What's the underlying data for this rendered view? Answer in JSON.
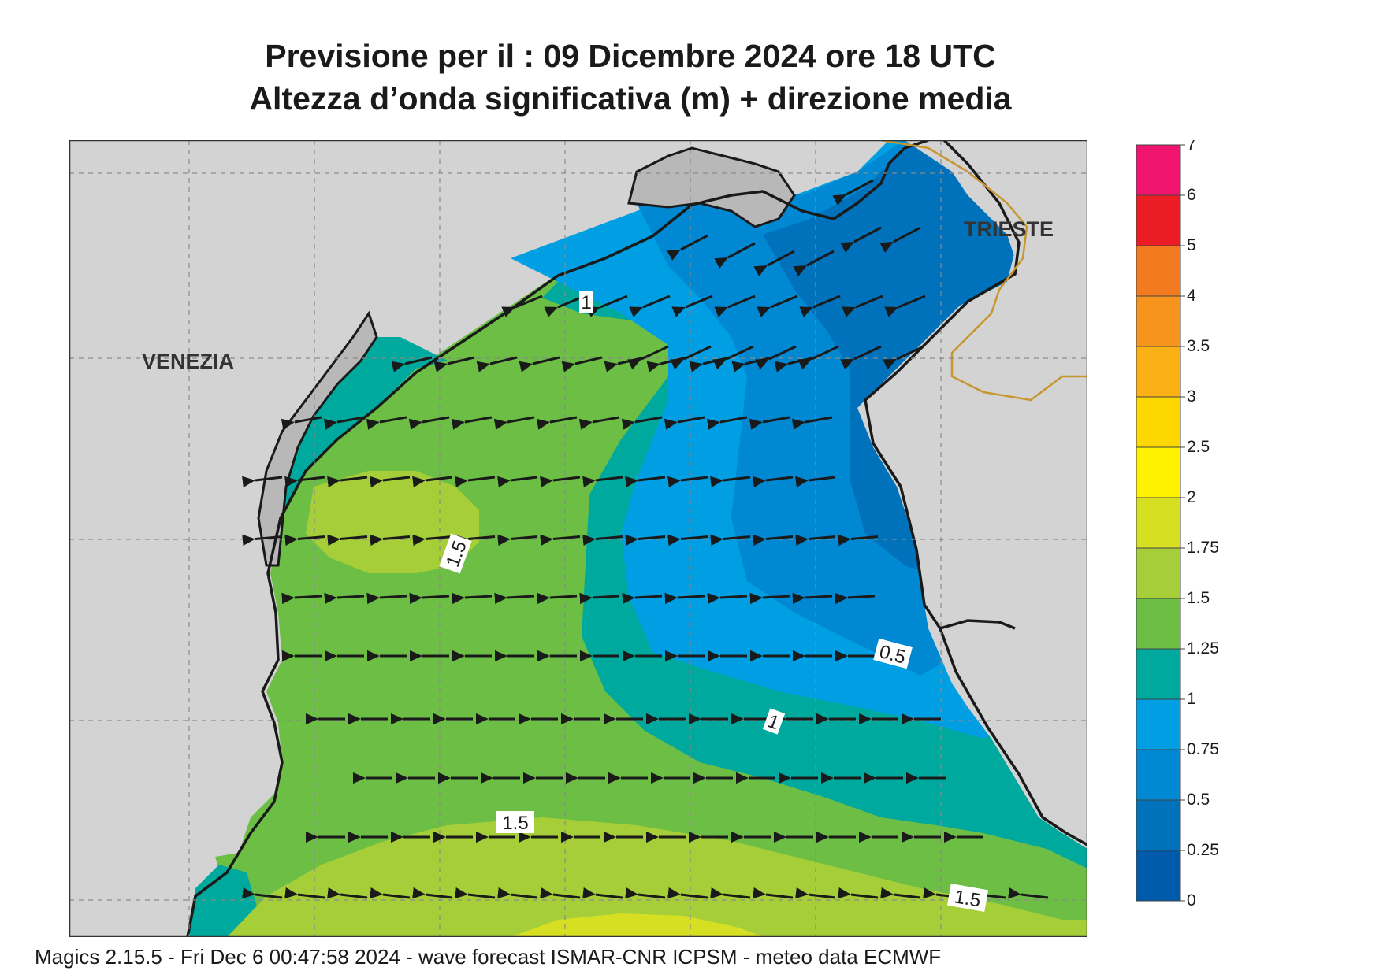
{
  "title_line1": "Previsione per il  :  09 Dicembre  2024    ore 18 UTC",
  "title_line2": "Altezza d’onda significativa (m) + direzione media",
  "cities": {
    "venezia": "VENEZIA",
    "trieste": "TRIESTE"
  },
  "contour_labels": [
    "1",
    "1.5",
    "0.5",
    "1",
    "1.5",
    "1.5"
  ],
  "legend": {
    "ticks": [
      "7",
      "6",
      "5",
      "4",
      "3.5",
      "3",
      "2.5",
      "2",
      "1.75",
      "1.5",
      "1.25",
      "1",
      "0.75",
      "0.5",
      "0.25",
      "0"
    ],
    "colors": [
      "#f0146e",
      "#ec1c24",
      "#f47a20",
      "#f6941d",
      "#fbb016",
      "#fdd800",
      "#fff200",
      "#d7df23",
      "#a6ce39",
      "#6cbe45",
      "#00a99d",
      "#009ee2",
      "#0088d2",
      "#0072bc",
      "#005aab"
    ]
  },
  "footer": "Magics 2.15.5 - Fri Dec  6 00:47:58 2024 - wave forecast  ISMAR-CNR  ICPSM - meteo data    ECMWF",
  "colors": {
    "land": "#d3d3d3",
    "border": "#c8962e"
  }
}
